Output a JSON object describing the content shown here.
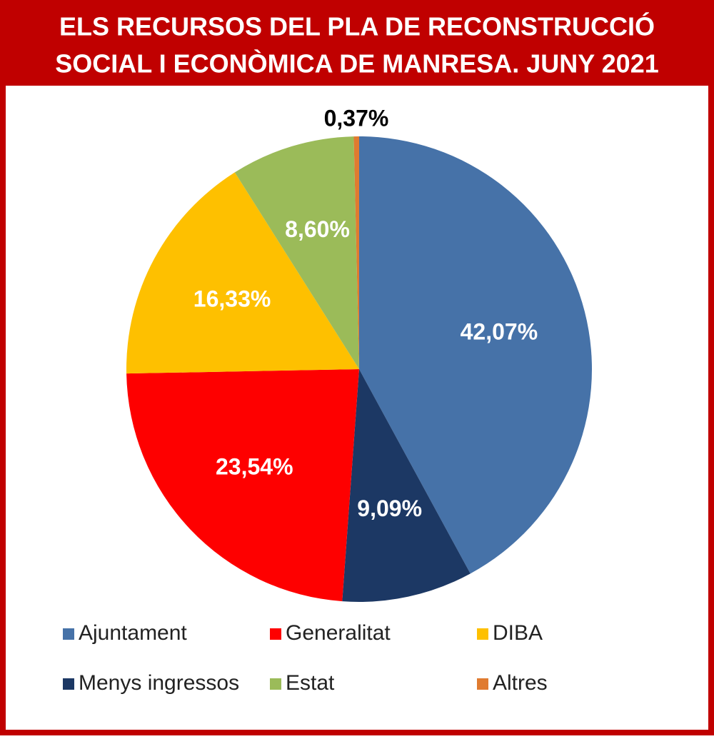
{
  "chart_data": {
    "type": "pie",
    "title": [
      "ELS RECURSOS DEL PLA DE RECONSTRUCCIÓ",
      "SOCIAL I ECONÒMICA DE MANRESA. JUNY 2021"
    ],
    "categories": [
      "Ajuntament",
      "Menys ingressos",
      "Generalitat",
      "DIBA",
      "Estat",
      "Altres"
    ],
    "values": [
      42.07,
      9.09,
      23.54,
      16.33,
      8.6,
      0.37
    ],
    "value_labels": [
      "42,07%",
      "9,09%",
      "23,54%",
      "16,33%",
      "8,60%",
      "0,37%"
    ],
    "colors": [
      "#4672a8",
      "#1c3864",
      "#fe0000",
      "#fec000",
      "#9bbb59",
      "#e07b30"
    ]
  }
}
